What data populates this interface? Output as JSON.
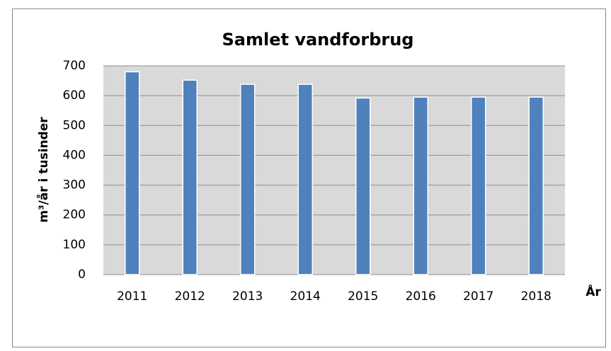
{
  "chart_data": {
    "type": "bar",
    "title": "Samlet vandforbrug",
    "y_label": "m³/år i tusinder",
    "x_label": "År",
    "categories": [
      "2011",
      "2012",
      "2013",
      "2014",
      "2015",
      "2016",
      "2017",
      "2018"
    ],
    "values": [
      680,
      652,
      638,
      638,
      592,
      595,
      595,
      595
    ],
    "color": "#4f81bd",
    "ylim": [
      0,
      700
    ],
    "yticks": [
      0,
      100,
      200,
      300,
      400,
      500,
      600,
      700
    ],
    "grid": true
  }
}
